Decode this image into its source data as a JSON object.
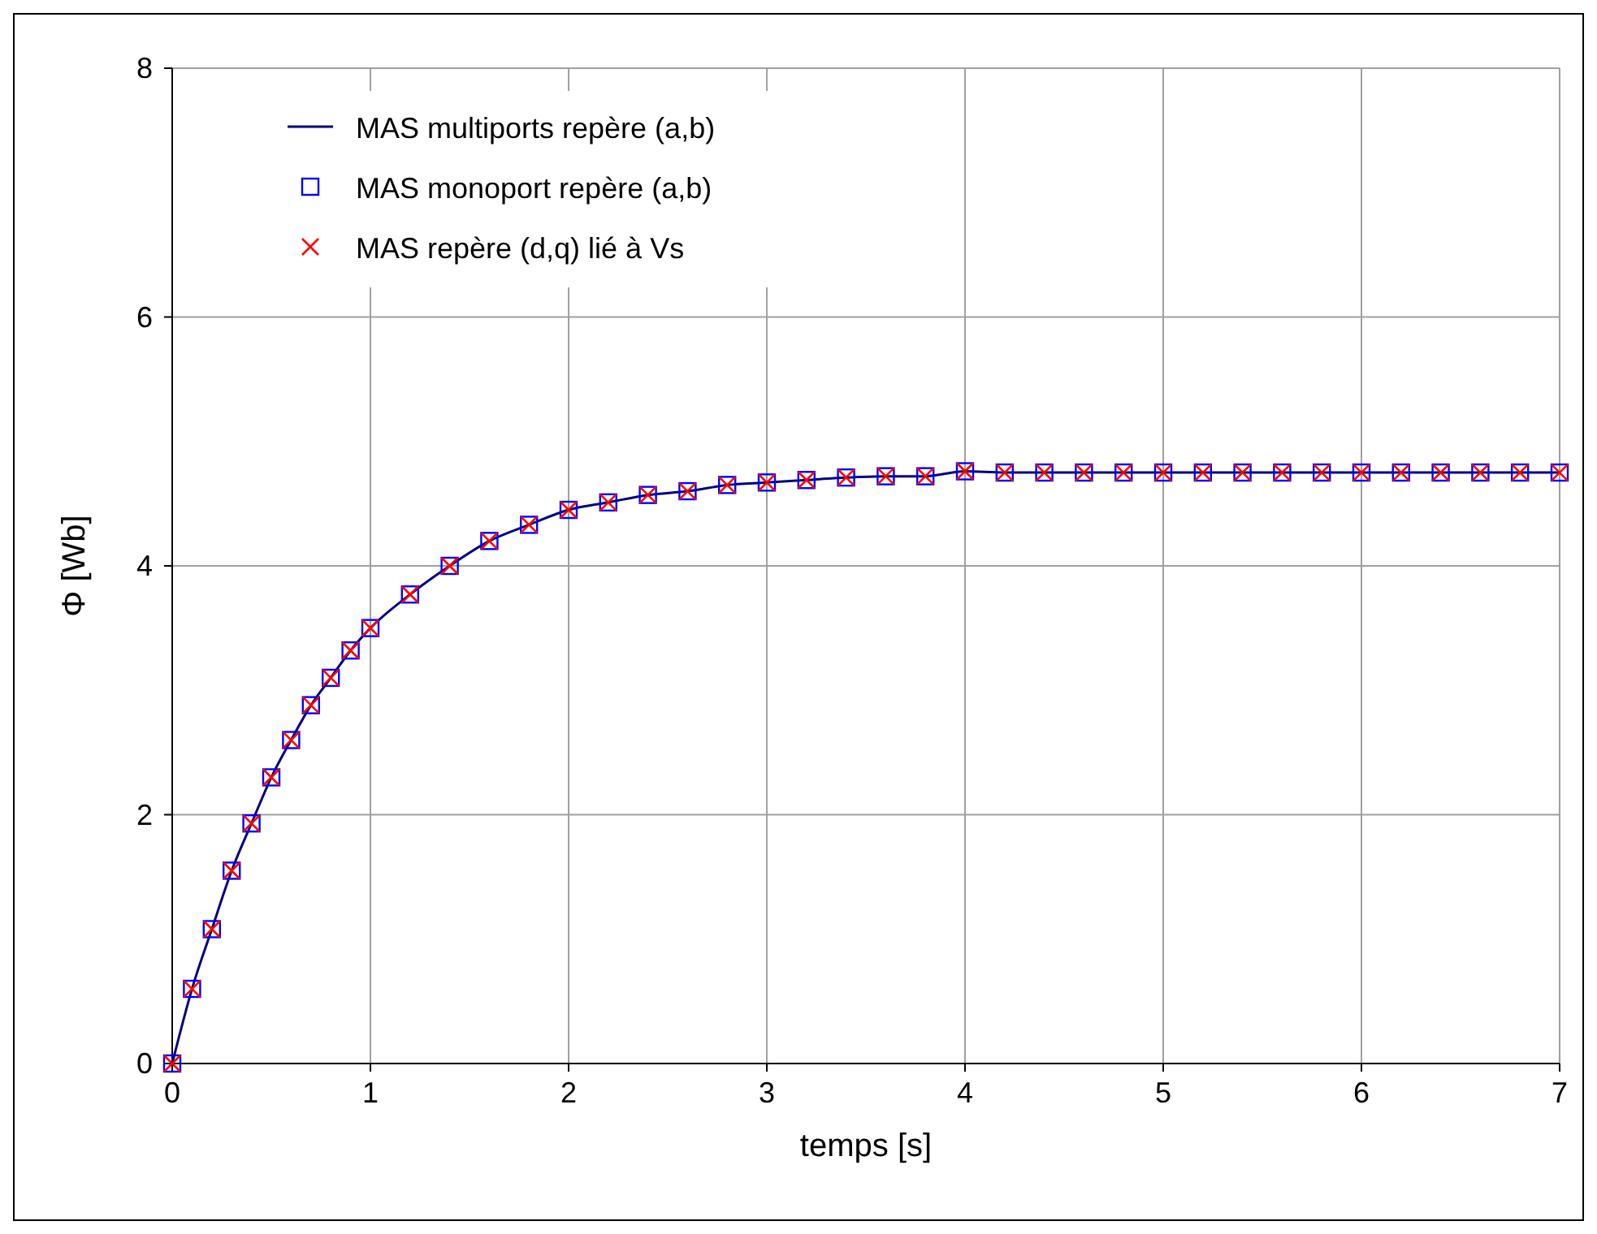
{
  "chart_data": {
    "type": "line",
    "xlabel": "temps [s]",
    "ylabel": "Φ [Wb]",
    "x": [
      0,
      0.1,
      0.2,
      0.3,
      0.4,
      0.5,
      0.6,
      0.7,
      0.8,
      0.9,
      1.0,
      1.2,
      1.4,
      1.6,
      1.8,
      2.0,
      2.2,
      2.4,
      2.6,
      2.8,
      3.0,
      3.2,
      3.4,
      3.6,
      3.8,
      4.0,
      4.2,
      4.4,
      4.6,
      4.8,
      5.0,
      5.2,
      5.4,
      5.6,
      5.8,
      6.0,
      6.2,
      6.4,
      6.6,
      6.8,
      7.0
    ],
    "series": [
      {
        "name": "MAS multiports repère (a,b)",
        "color": "#000080",
        "marker": "none",
        "values": [
          0,
          0.6,
          1.08,
          1.55,
          1.93,
          2.3,
          2.6,
          2.88,
          3.1,
          3.32,
          3.5,
          3.77,
          4.0,
          4.2,
          4.33,
          4.45,
          4.51,
          4.57,
          4.6,
          4.65,
          4.67,
          4.69,
          4.71,
          4.72,
          4.72,
          4.76,
          4.75,
          4.75,
          4.75,
          4.75,
          4.75,
          4.75,
          4.75,
          4.75,
          4.75,
          4.75,
          4.75,
          4.75,
          4.75,
          4.75,
          4.75
        ]
      },
      {
        "name": "MAS monoport repère (a,b)",
        "type": "scatter",
        "color": "#0000ff",
        "marker": "square",
        "values": [
          0,
          0.6,
          1.08,
          1.55,
          1.93,
          2.3,
          2.6,
          2.88,
          3.1,
          3.32,
          3.5,
          3.77,
          4.0,
          4.2,
          4.33,
          4.45,
          4.51,
          4.57,
          4.6,
          4.65,
          4.67,
          4.69,
          4.71,
          4.72,
          4.72,
          4.76,
          4.75,
          4.75,
          4.75,
          4.75,
          4.75,
          4.75,
          4.75,
          4.75,
          4.75,
          4.75,
          4.75,
          4.75,
          4.75,
          4.75,
          4.75
        ]
      },
      {
        "name": "MAS repère (d,q) lié à Vs",
        "type": "scatter",
        "color": "#ff0000",
        "marker": "cross",
        "values": [
          0,
          0.6,
          1.08,
          1.55,
          1.93,
          2.3,
          2.6,
          2.88,
          3.1,
          3.32,
          3.5,
          3.77,
          4.0,
          4.2,
          4.33,
          4.45,
          4.51,
          4.57,
          4.6,
          4.65,
          4.67,
          4.69,
          4.71,
          4.72,
          4.72,
          4.76,
          4.75,
          4.75,
          4.75,
          4.75,
          4.75,
          4.75,
          4.75,
          4.75,
          4.75,
          4.75,
          4.75,
          4.75,
          4.75,
          4.75,
          4.75
        ]
      }
    ],
    "xlim": [
      0,
      7
    ],
    "xticks": [
      0,
      1,
      2,
      3,
      4,
      5,
      6,
      7
    ],
    "ylim": [
      0,
      8
    ],
    "yticks": [
      0,
      2,
      4,
      6,
      8
    ],
    "grid": true,
    "legend": "top left"
  }
}
